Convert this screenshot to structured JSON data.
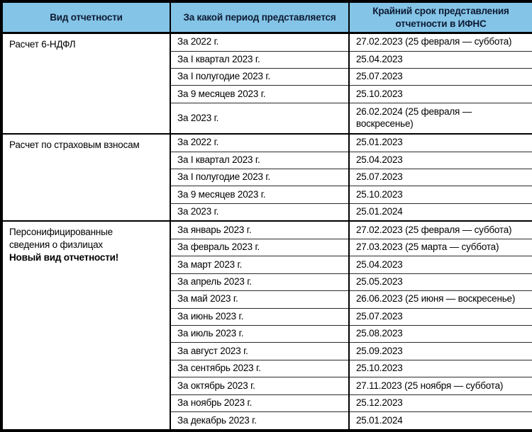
{
  "table": {
    "columns": [
      "Вид отчетности",
      "За какой период представляется",
      "Крайний срок представления отчетности в ИФНС"
    ],
    "colors": {
      "header_bg": "#84C4E7",
      "header_text": "#0d1b33",
      "body_text": "#000000",
      "border": "#000000"
    },
    "groups": [
      {
        "title_lines": [
          "Расчет 6-НДФЛ"
        ],
        "note": null,
        "rows": [
          {
            "period": "За 2022 г.",
            "deadline": "27.02.2023 (25 февраля — суббота)"
          },
          {
            "period": "За I квартал 2023 г.",
            "deadline": "25.04.2023"
          },
          {
            "period": "За I полугодие 2023 г.",
            "deadline": "25.07.2023"
          },
          {
            "period": "За 9 месяцев 2023 г.",
            "deadline": "25.10.2023"
          },
          {
            "period": "За 2023 г.",
            "deadline": "26.02.2024 (25 февраля — воскресенье)"
          }
        ]
      },
      {
        "title_lines": [
          "Расчет по страховым взносам"
        ],
        "note": null,
        "rows": [
          {
            "period": "За 2022 г.",
            "deadline": "25.01.2023"
          },
          {
            "period": "За I квартал 2023 г.",
            "deadline": "25.04.2023"
          },
          {
            "period": "За I полугодие 2023 г.",
            "deadline": "25.07.2023"
          },
          {
            "period": "За 9 месяцев 2023 г.",
            "deadline": "25.10.2023"
          },
          {
            "period": "За 2023 г.",
            "deadline": "25.01.2024"
          }
        ]
      },
      {
        "title_lines": [
          "Персонифицированные",
          "сведения о физлицах"
        ],
        "note": "Новый вид отчетности!",
        "rows": [
          {
            "period": "За январь 2023 г.",
            "deadline": "27.02.2023 (25 февраля — суббота)"
          },
          {
            "period": "За февраль 2023 г.",
            "deadline": "27.03.2023 (25 марта — суббота)"
          },
          {
            "period": "За март 2023 г.",
            "deadline": "25.04.2023"
          },
          {
            "period": "За апрель 2023 г.",
            "deadline": "25.05.2023"
          },
          {
            "period": "За май 2023 г.",
            "deadline": "26.06.2023 (25 июня — воскресенье)"
          },
          {
            "period": "За июнь 2023 г.",
            "deadline": "25.07.2023"
          },
          {
            "period": "За июль 2023 г.",
            "deadline": "25.08.2023"
          },
          {
            "period": "За август 2023 г.",
            "deadline": "25.09.2023"
          },
          {
            "period": "За сентябрь 2023 г.",
            "deadline": "25.10.2023"
          },
          {
            "period": "За октябрь 2023 г.",
            "deadline": "27.11.2023 (25 ноября — суббота)"
          },
          {
            "period": "За ноябрь 2023 г.",
            "deadline": "25.12.2023"
          },
          {
            "period": "За декабрь 2023 г.",
            "deadline": "25.01.2024"
          }
        ]
      }
    ]
  }
}
